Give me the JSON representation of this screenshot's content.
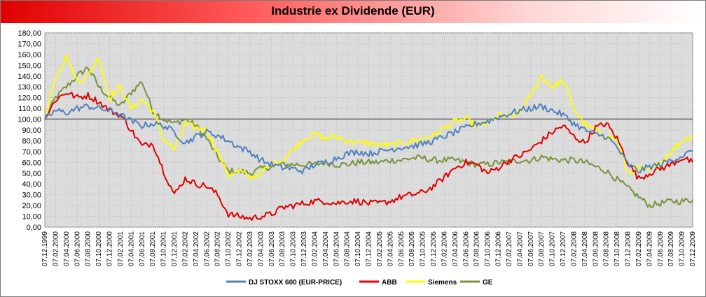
{
  "chart_data": {
    "type": "line",
    "title": "Industrie ex Dividende (EUR)",
    "xlabel": "",
    "ylabel": "",
    "ylim": [
      0,
      180
    ],
    "y_step": 10,
    "y_ticks": [
      "0,00",
      "10,00",
      "20,00",
      "30,00",
      "40,00",
      "50,00",
      "60,00",
      "70,00",
      "80,00",
      "90,00",
      "100,00",
      "110,00",
      "120,00",
      "130,00",
      "140,00",
      "150,00",
      "160,00",
      "170,00",
      "180,00"
    ],
    "x_ticks": [
      "07.12.1999",
      "07.02.2000",
      "07.04.2000",
      "07.06.2000",
      "07.08.2000",
      "07.10.2000",
      "07.12.2000",
      "07.02.2001",
      "07.04.2001",
      "07.06.2001",
      "07.08.2001",
      "07.10.2001",
      "07.12.2001",
      "07.02.2002",
      "07.04.2002",
      "07.06.2002",
      "07.08.2002",
      "07.10.2002",
      "07.12.2002",
      "07.02.2003",
      "07.04.2003",
      "07.06.2003",
      "07.08.2003",
      "07.10.2003",
      "07.12.2003",
      "07.02.2004",
      "07.04.2004",
      "07.06.2004",
      "07.08.2004",
      "07.10.2004",
      "07.12.2004",
      "07.02.2005",
      "07.04.2005",
      "07.06.2005",
      "07.08.2005",
      "07.10.2005",
      "07.12.2005",
      "07.02.2006",
      "07.04.2006",
      "07.06.2006",
      "07.08.2006",
      "07.10.2006",
      "07.12.2006",
      "07.02.2007",
      "07.04.2007",
      "07.06.2007",
      "07.08.2007",
      "07.10.2007",
      "07.12.2007",
      "07.02.2008",
      "07.04.2008",
      "07.06.2008",
      "07.08.2008",
      "07.10.2008",
      "07.12.2008",
      "07.02.2009",
      "07.04.2009",
      "07.06.2009",
      "07.08.2009",
      "07.10.2009",
      "07.12.2009"
    ],
    "reference_line": 100,
    "legend_position": "bottom",
    "series": [
      {
        "name": "DJ STOXX 600 (EUR-PRICE)",
        "color": "#4f81bd",
        "values": [
          100,
          108,
          106,
          110,
          112,
          110,
          108,
          104,
          98,
          94,
          96,
          94,
          88,
          78,
          84,
          88,
          85,
          80,
          74,
          70,
          62,
          58,
          55,
          54,
          52,
          58,
          60,
          64,
          68,
          70,
          68,
          70,
          72,
          74,
          75,
          77,
          80,
          84,
          88,
          92,
          96,
          98,
          102,
          105,
          108,
          110,
          112,
          108,
          104,
          96,
          90,
          86,
          84,
          74,
          58,
          52,
          56,
          58,
          62,
          66,
          70
        ]
      },
      {
        "name": "ABB",
        "color": "#e00000",
        "values": [
          100,
          118,
          125,
          120,
          122,
          116,
          108,
          104,
          90,
          75,
          78,
          52,
          30,
          45,
          40,
          38,
          30,
          12,
          10,
          8,
          10,
          12,
          18,
          20,
          22,
          24,
          24,
          22,
          24,
          24,
          22,
          22,
          24,
          28,
          30,
          32,
          38,
          46,
          55,
          60,
          58,
          50,
          55,
          62,
          66,
          72,
          80,
          88,
          94,
          84,
          78,
          92,
          96,
          82,
          60,
          45,
          50,
          54,
          58,
          64,
          60
        ]
      },
      {
        "name": "Siemens",
        "color": "#ffff00",
        "values": [
          100,
          140,
          158,
          135,
          140,
          158,
          120,
          130,
          110,
          118,
          108,
          82,
          72,
          95,
          92,
          90,
          70,
          48,
          52,
          46,
          50,
          58,
          62,
          72,
          82,
          86,
          82,
          84,
          80,
          78,
          78,
          76,
          76,
          78,
          80,
          82,
          85,
          92,
          98,
          100,
          94,
          96,
          104,
          102,
          106,
          122,
          140,
          130,
          136,
          110,
          95,
          90,
          84,
          82,
          50,
          55,
          52,
          60,
          70,
          80,
          85
        ]
      },
      {
        "name": "GE",
        "color": "#77933c",
        "values": [
          100,
          120,
          130,
          140,
          148,
          130,
          120,
          112,
          125,
          135,
          108,
          100,
          96,
          100,
          94,
          82,
          65,
          52,
          52,
          50,
          54,
          56,
          58,
          58,
          58,
          58,
          60,
          58,
          58,
          60,
          60,
          60,
          62,
          62,
          64,
          64,
          62,
          62,
          62,
          60,
          58,
          58,
          60,
          60,
          62,
          62,
          65,
          63,
          62,
          62,
          60,
          56,
          52,
          44,
          36,
          28,
          20,
          22,
          24,
          24,
          25
        ]
      }
    ]
  }
}
